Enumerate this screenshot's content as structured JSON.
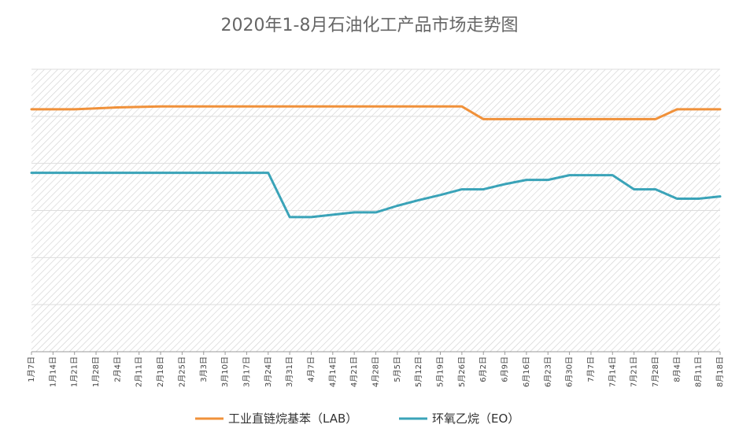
{
  "chart_data": {
    "type": "line",
    "title": "2020年1-8月石油化工产品市场走势图",
    "x": [
      "1月7日",
      "1月14日",
      "1月21日",
      "1月28日",
      "2月4日",
      "2月11日",
      "2月18日",
      "2月25日",
      "3月3日",
      "3月10日",
      "3月17日",
      "3月24日",
      "3月31日",
      "4月7日",
      "4月14日",
      "4月21日",
      "4月28日",
      "5月5日",
      "5月12日",
      "5月19日",
      "5月26日",
      "6月2日",
      "6月9日",
      "6月16日",
      "6月23日",
      "6月30日",
      "7月7日",
      "7月14日",
      "7月21日",
      "7月28日",
      "8月4日",
      "8月11日",
      "8月18日"
    ],
    "ylim": [
      0,
      6
    ],
    "grid": true,
    "legend_position": "bottom",
    "series": [
      {
        "name": "工业直链烷基苯（LAB）",
        "color": "#f0913a",
        "values": [
          5.15,
          5.15,
          5.15,
          5.17,
          5.19,
          5.2,
          5.21,
          5.21,
          5.21,
          5.21,
          5.21,
          5.21,
          5.21,
          5.21,
          5.21,
          5.21,
          5.21,
          5.21,
          5.21,
          5.21,
          5.21,
          4.94,
          4.94,
          4.94,
          4.94,
          4.94,
          4.94,
          4.94,
          4.94,
          4.94,
          5.15,
          5.15,
          5.15
        ]
      },
      {
        "name": "环氧乙烷（EO）",
        "color": "#3aa3b8",
        "values": [
          3.8,
          3.8,
          3.8,
          3.8,
          3.8,
          3.8,
          3.8,
          3.8,
          3.8,
          3.8,
          3.8,
          3.8,
          2.86,
          2.86,
          2.91,
          2.96,
          2.96,
          3.1,
          3.22,
          3.33,
          3.45,
          3.45,
          3.56,
          3.65,
          3.65,
          3.75,
          3.75,
          3.75,
          3.45,
          3.45,
          3.25,
          3.25,
          3.3
        ]
      }
    ]
  }
}
